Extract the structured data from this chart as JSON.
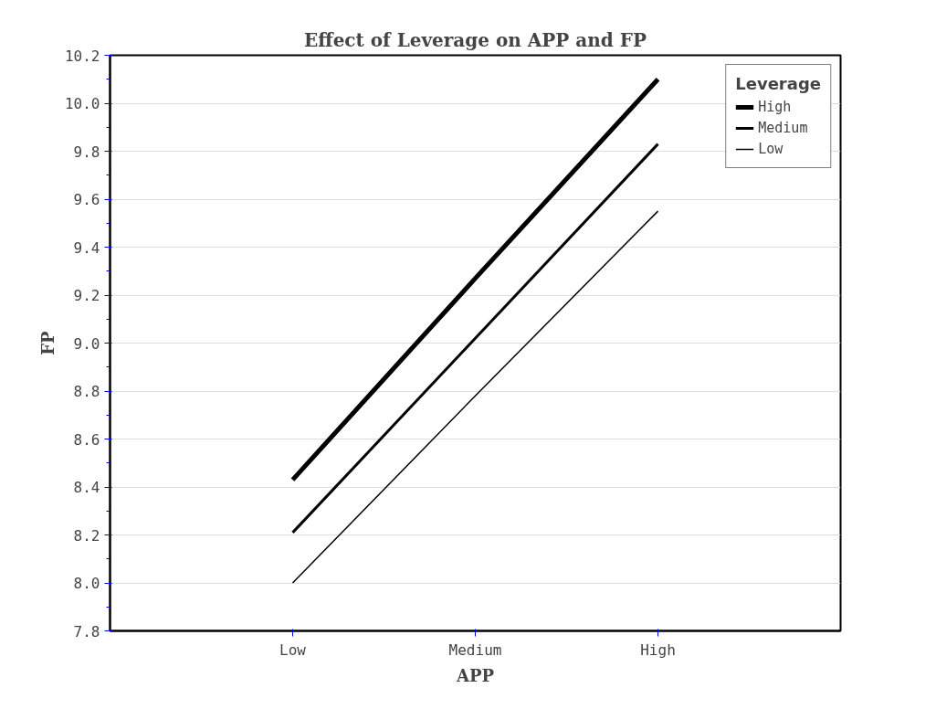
{
  "chart_data": {
    "type": "line",
    "title": "Effect of Leverage on APP and FP",
    "xlabel": "APP",
    "ylabel": "FP",
    "legend_title": "Leverage",
    "categories": [
      "Low",
      "Medium",
      "High"
    ],
    "series": [
      {
        "name": "High",
        "color": "#000000",
        "values": [
          8.43,
          9.27,
          10.1
        ]
      },
      {
        "name": "Medium",
        "color": "#000000",
        "values": [
          8.21,
          9.02,
          9.83
        ]
      },
      {
        "name": "Low",
        "color": "#000000",
        "values": [
          8.0,
          8.78,
          9.55
        ]
      }
    ],
    "ylim": [
      7.8,
      10.2
    ],
    "yticks": [
      7.8,
      {
        "value": 8,
        "label": "8.0"
      },
      8.2,
      8.4,
      8.6,
      8.8,
      {
        "value": 9,
        "label": "9.0"
      },
      9.2,
      9.4,
      9.6,
      9.8,
      {
        "value": 10,
        "label": "10.0"
      },
      10.2
    ],
    "grid": "y",
    "legend": "top right",
    "marker": "none",
    "line_style": "solid"
  }
}
